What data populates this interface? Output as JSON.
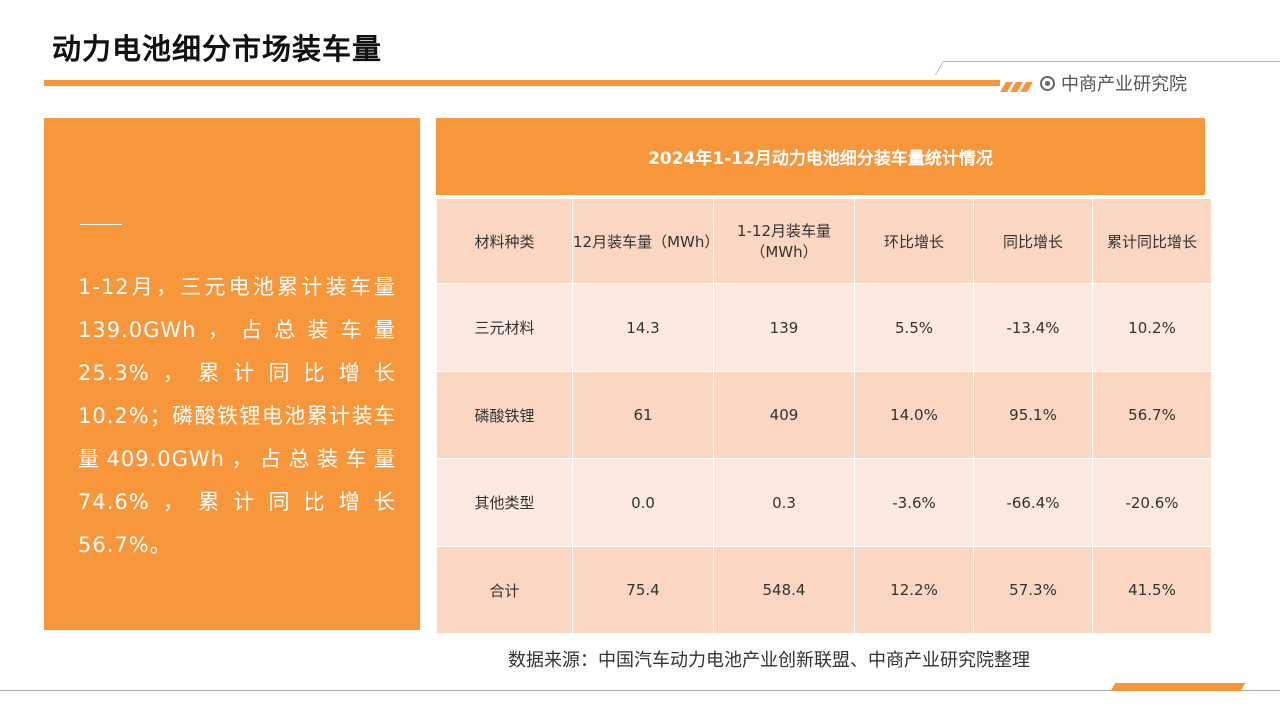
{
  "page_title": "动力电池细分市场装车量",
  "brand": {
    "name": "中商产业研究院",
    "icon": "circle-dot-icon"
  },
  "colors": {
    "accent": "#f7963a",
    "row_dark": "#fad6c3",
    "row_light": "#fde9e0"
  },
  "summary": {
    "text": "1-12月，三元电池累计装车量139.0GWh，占总装车量25.3%，累计同比增长10.2%；磷酸铁锂电池累计装车量409.0GWh，占总装车量74.6%，累计同比增长56.7%。"
  },
  "table": {
    "title": "2024年1-12月动力电池细分装车量统计情况",
    "headers": [
      "材料种类",
      "12月装车量（MWh）",
      "1-12月装车量（MWh）",
      "环比增长",
      "同比增长",
      "累计同比增长"
    ],
    "rows": [
      [
        "三元材料",
        "14.3",
        "139",
        "5.5%",
        "-13.4%",
        "10.2%"
      ],
      [
        "磷酸铁锂",
        "61",
        "409",
        "14.0%",
        "95.1%",
        "56.7%"
      ],
      [
        "其他类型",
        "0.0",
        "0.3",
        "-3.6%",
        "-66.4%",
        "-20.6%"
      ],
      [
        "合计",
        "75.4",
        "548.4",
        "12.2%",
        "57.3%",
        "41.5%"
      ]
    ]
  },
  "source": "数据来源：中国汽车动力电池产业创新联盟、中商产业研究院整理"
}
